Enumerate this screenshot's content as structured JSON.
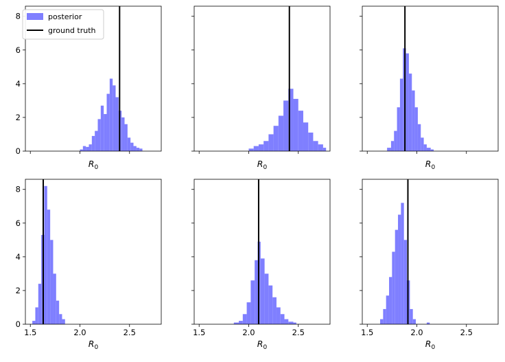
{
  "legend": {
    "placement": "upper-left",
    "items": [
      {
        "label": "posterior",
        "color": "#7f7fff",
        "kind": "patch"
      },
      {
        "label": "ground truth",
        "color": "#000000",
        "kind": "line"
      }
    ]
  },
  "chart_data": [
    {
      "type": "histogram",
      "xlabel": "$R_0$",
      "xlim": [
        1.45,
        2.82
      ],
      "ylim": [
        0,
        8.6
      ],
      "show_xticklabels": false,
      "show_yticklabels": true,
      "ground_truth": 2.4,
      "bins": [
        [
          2.0,
          0.1
        ],
        [
          2.03,
          0.3
        ],
        [
          2.06,
          0.25
        ],
        [
          2.09,
          0.4
        ],
        [
          2.12,
          0.9
        ],
        [
          2.15,
          1.2
        ],
        [
          2.18,
          1.9
        ],
        [
          2.21,
          2.7
        ],
        [
          2.24,
          2.2
        ],
        [
          2.27,
          3.4
        ],
        [
          2.3,
          4.3
        ],
        [
          2.33,
          3.9
        ],
        [
          2.36,
          3.2
        ],
        [
          2.39,
          2.4
        ],
        [
          2.42,
          2.0
        ],
        [
          2.45,
          1.6
        ],
        [
          2.48,
          0.8
        ],
        [
          2.51,
          0.5
        ],
        [
          2.54,
          0.3
        ],
        [
          2.57,
          0.2
        ],
        [
          2.6,
          0.15
        ]
      ]
    },
    {
      "type": "histogram",
      "xlabel": "$R_0$",
      "xlim": [
        1.45,
        2.82
      ],
      "ylim": [
        0,
        8.6
      ],
      "show_xticklabels": false,
      "show_yticklabels": false,
      "ground_truth": 2.41,
      "bins": [
        [
          2.0,
          0.15
        ],
        [
          2.05,
          0.3
        ],
        [
          2.1,
          0.4
        ],
        [
          2.15,
          0.6
        ],
        [
          2.2,
          1.0
        ],
        [
          2.25,
          1.5
        ],
        [
          2.3,
          2.1
        ],
        [
          2.35,
          3.0
        ],
        [
          2.4,
          3.7
        ],
        [
          2.45,
          3.1
        ],
        [
          2.5,
          2.4
        ],
        [
          2.55,
          1.7
        ],
        [
          2.6,
          1.1
        ],
        [
          2.65,
          0.6
        ],
        [
          2.7,
          0.4
        ],
        [
          2.75,
          0.2
        ]
      ]
    },
    {
      "type": "histogram",
      "xlabel": "$R_0$",
      "xlim": [
        1.45,
        2.82
      ],
      "ylim": [
        0,
        8.6
      ],
      "show_xticklabels": false,
      "show_yticklabels": false,
      "ground_truth": 1.88,
      "bins": [
        [
          1.7,
          0.2
        ],
        [
          1.74,
          0.6
        ],
        [
          1.77,
          1.2
        ],
        [
          1.8,
          2.6
        ],
        [
          1.83,
          4.3
        ],
        [
          1.86,
          6.1
        ],
        [
          1.89,
          5.8
        ],
        [
          1.92,
          4.6
        ],
        [
          1.95,
          3.6
        ],
        [
          1.98,
          2.6
        ],
        [
          2.01,
          1.6
        ],
        [
          2.04,
          0.8
        ],
        [
          2.07,
          0.4
        ],
        [
          2.1,
          0.2
        ],
        [
          2.14,
          0.1
        ]
      ]
    },
    {
      "type": "histogram",
      "xlabel": "$R_0$",
      "xlim": [
        1.45,
        2.82
      ],
      "ylim": [
        0,
        8.6
      ],
      "show_xticklabels": true,
      "show_yticklabels": true,
      "ground_truth": 1.63,
      "bins": [
        [
          1.52,
          0.2
        ],
        [
          1.55,
          1.0
        ],
        [
          1.58,
          2.4
        ],
        [
          1.61,
          5.3
        ],
        [
          1.64,
          8.2
        ],
        [
          1.67,
          6.8
        ],
        [
          1.7,
          5.0
        ],
        [
          1.73,
          3.0
        ],
        [
          1.76,
          1.4
        ],
        [
          1.79,
          0.6
        ],
        [
          1.82,
          0.3
        ]
      ]
    },
    {
      "type": "histogram",
      "xlabel": "$R_0$",
      "xlim": [
        1.45,
        2.82
      ],
      "ylim": [
        0,
        8.6
      ],
      "show_xticklabels": true,
      "show_yticklabels": false,
      "ground_truth": 2.1,
      "bins": [
        [
          1.85,
          0.1
        ],
        [
          1.9,
          0.2
        ],
        [
          1.94,
          0.6
        ],
        [
          1.98,
          1.3
        ],
        [
          2.02,
          2.6
        ],
        [
          2.06,
          3.8
        ],
        [
          2.09,
          4.9
        ],
        [
          2.12,
          3.9
        ],
        [
          2.16,
          3.0
        ],
        [
          2.2,
          2.3
        ],
        [
          2.24,
          1.6
        ],
        [
          2.28,
          1.0
        ],
        [
          2.32,
          0.6
        ],
        [
          2.36,
          0.3
        ],
        [
          2.4,
          0.15
        ],
        [
          2.45,
          0.1
        ]
      ]
    },
    {
      "type": "histogram",
      "xlabel": "$R_0$",
      "xlim": [
        1.45,
        2.82
      ],
      "ylim": [
        0,
        8.6
      ],
      "show_xticklabels": true,
      "show_yticklabels": false,
      "ground_truth": 1.91,
      "bins": [
        [
          1.63,
          0.3
        ],
        [
          1.66,
          0.9
        ],
        [
          1.69,
          1.7
        ],
        [
          1.72,
          2.8
        ],
        [
          1.75,
          4.3
        ],
        [
          1.78,
          5.6
        ],
        [
          1.81,
          6.5
        ],
        [
          1.84,
          7.2
        ],
        [
          1.87,
          5.0
        ],
        [
          1.9,
          2.6
        ],
        [
          1.93,
          0.9
        ],
        [
          1.96,
          0.3
        ],
        [
          2.1,
          0.1
        ]
      ]
    }
  ],
  "axes": {
    "x_ticks": [
      1.5,
      2.0,
      2.5
    ],
    "x_tick_labels": [
      "1.5",
      "2.0",
      "2.5"
    ],
    "y_ticks": [
      0,
      2,
      4,
      6,
      8
    ],
    "y_tick_labels": [
      "0",
      "2",
      "4",
      "6",
      "8"
    ]
  }
}
